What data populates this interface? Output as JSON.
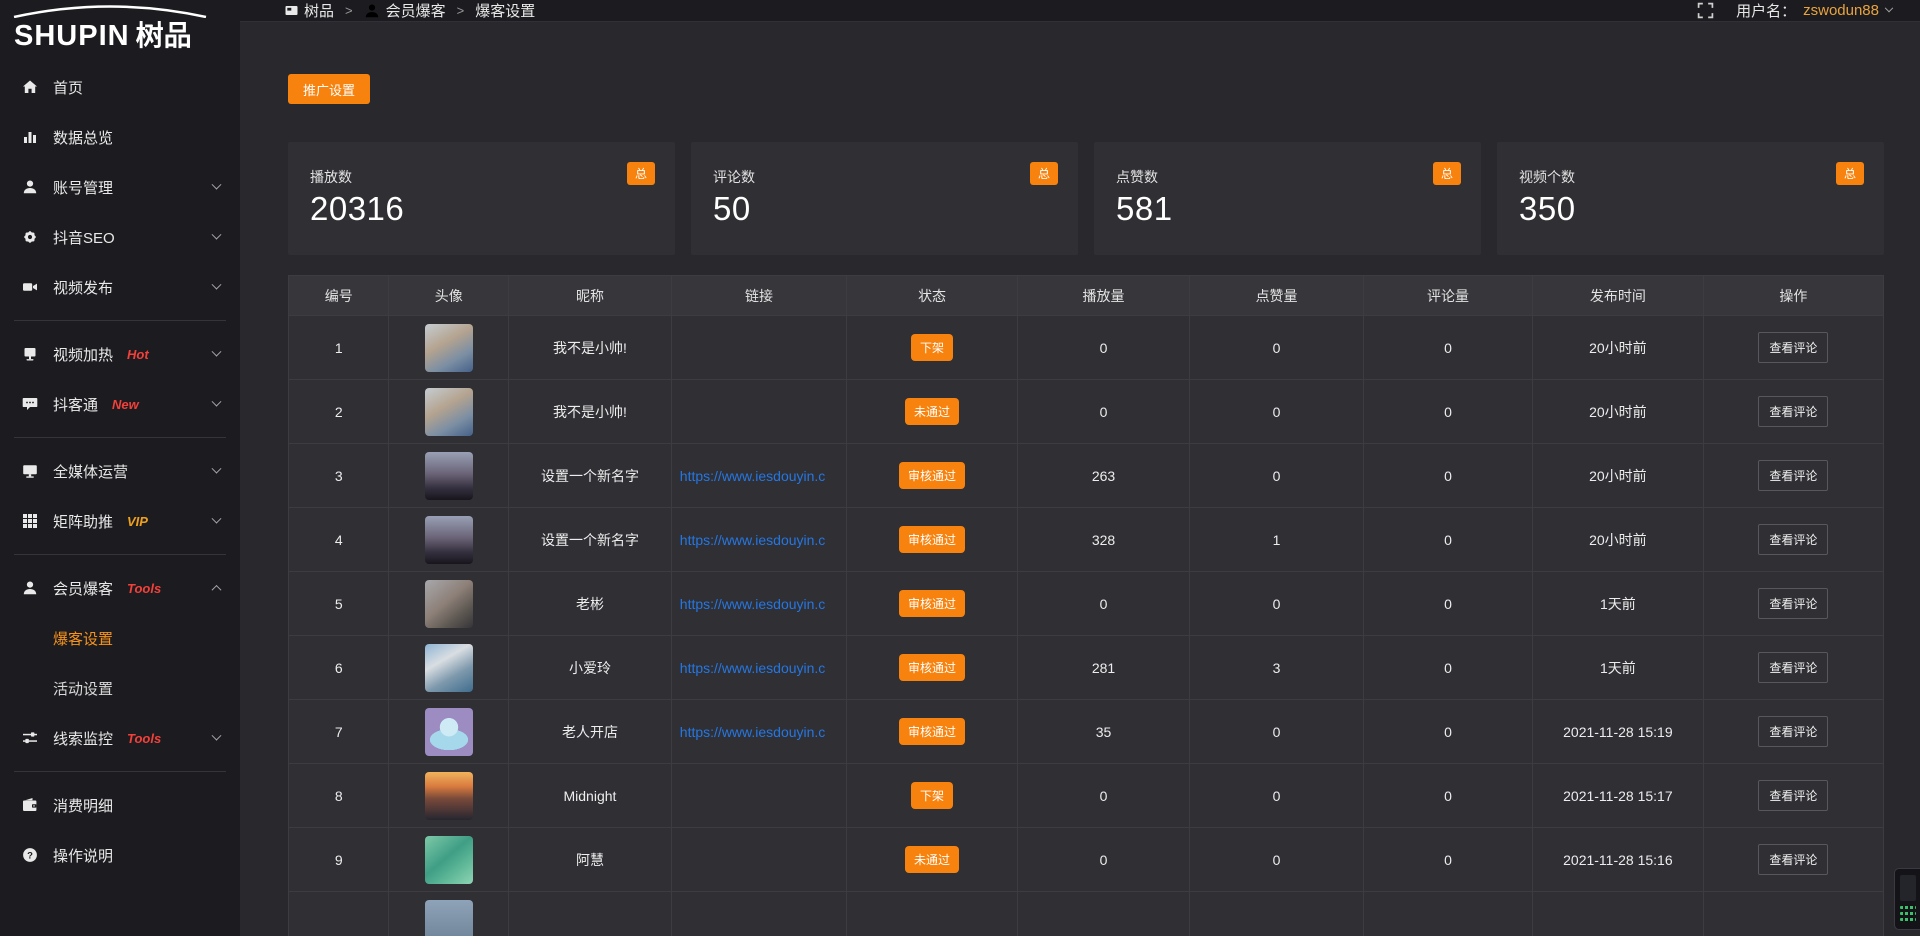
{
  "logo": {
    "brand": "SHUPIN",
    "brand_cn": "树品"
  },
  "topbar": {
    "breadcrumb": [
      {
        "label": "树品",
        "icon": "dashboard"
      },
      {
        "label": "会员爆客",
        "icon": "user"
      },
      {
        "label": "爆客设置",
        "icon": ""
      }
    ],
    "separator": ">",
    "username_label": "用户名：",
    "username": "zswodun88"
  },
  "sidebar": {
    "items": [
      {
        "label": "首页",
        "icon": "home"
      },
      {
        "label": "数据总览",
        "icon": "chart"
      },
      {
        "label": "账号管理",
        "icon": "user",
        "chevron": "down"
      },
      {
        "label": "抖音SEO",
        "icon": "gear",
        "chevron": "down"
      },
      {
        "label": "视频发布",
        "icon": "video",
        "chevron": "down",
        "divider_after": true
      },
      {
        "label": "视频加热",
        "icon": "heat",
        "badge": "Hot",
        "badge_color": "#f2403a",
        "chevron": "down"
      },
      {
        "label": "抖客通",
        "icon": "chat",
        "badge": "New",
        "badge_color": "#f2403a",
        "chevron": "down",
        "divider_after": true
      },
      {
        "label": "全媒体运营",
        "icon": "monitor",
        "chevron": "down"
      },
      {
        "label": "矩阵助推",
        "icon": "grid",
        "badge": "VIP",
        "badge_color": "#f0a11c",
        "chevron": "down",
        "divider_after": true
      },
      {
        "label": "会员爆客",
        "icon": "user",
        "badge": "Tools",
        "badge_color": "#f2403a",
        "chevron": "up",
        "children": [
          {
            "label": "爆客设置",
            "active": true
          },
          {
            "label": "活动设置",
            "active": false
          }
        ]
      },
      {
        "label": "线索监控",
        "icon": "sliders",
        "badge": "Tools",
        "badge_color": "#f2403a",
        "chevron": "down",
        "divider_after": true
      },
      {
        "label": "消费明细",
        "icon": "wallet"
      },
      {
        "label": "操作说明",
        "icon": "help"
      }
    ]
  },
  "toolbar": {
    "promo_button": "推广设置"
  },
  "stats": [
    {
      "label": "播放数",
      "value": "20316",
      "badge": "总"
    },
    {
      "label": "评论数",
      "value": "50",
      "badge": "总"
    },
    {
      "label": "点赞数",
      "value": "581",
      "badge": "总"
    },
    {
      "label": "视频个数",
      "value": "350",
      "badge": "总"
    }
  ],
  "table": {
    "headers": [
      "编号",
      "头像",
      "昵称",
      "链接",
      "状态",
      "播放量",
      "点赞量",
      "评论量",
      "发布时间",
      "操作"
    ],
    "action_label": "查看评论",
    "rows": [
      {
        "id": "1",
        "avatar": "boy",
        "nickname": "我不是小帅!",
        "link": "",
        "status": "下架",
        "plays": "0",
        "likes": "0",
        "comments": "0",
        "time": "20小时前"
      },
      {
        "id": "2",
        "avatar": "boy",
        "nickname": "我不是小帅!",
        "link": "",
        "status": "未通过",
        "plays": "0",
        "likes": "0",
        "comments": "0",
        "time": "20小时前"
      },
      {
        "id": "3",
        "avatar": "sunset",
        "nickname": "设置一个新名字",
        "link": "https://www.iesdouyin.c",
        "status": "审核通过",
        "plays": "263",
        "likes": "0",
        "comments": "0",
        "time": "20小时前"
      },
      {
        "id": "4",
        "avatar": "sunset",
        "nickname": "设置一个新名字",
        "link": "https://www.iesdouyin.c",
        "status": "审核通过",
        "plays": "328",
        "likes": "1",
        "comments": "0",
        "time": "20小时前"
      },
      {
        "id": "5",
        "avatar": "man",
        "nickname": "老彬",
        "link": "https://www.iesdouyin.c",
        "status": "审核通过",
        "plays": "0",
        "likes": "0",
        "comments": "0",
        "time": "1天前"
      },
      {
        "id": "6",
        "avatar": "woman",
        "nickname": "小爱玲",
        "link": "https://www.iesdouyin.c",
        "status": "审核通过",
        "plays": "281",
        "likes": "3",
        "comments": "0",
        "time": "1天前"
      },
      {
        "id": "7",
        "avatar": "mascot",
        "nickname": "老人开店",
        "link": "https://www.iesdouyin.c",
        "status": "审核通过",
        "plays": "35",
        "likes": "0",
        "comments": "0",
        "time": "2021-11-28 15:19"
      },
      {
        "id": "8",
        "avatar": "sea",
        "nickname": "Midnight",
        "link": "",
        "status": "下架",
        "plays": "0",
        "likes": "0",
        "comments": "0",
        "time": "2021-11-28 15:17"
      },
      {
        "id": "9",
        "avatar": "green",
        "nickname": "阿慧",
        "link": "",
        "status": "未通过",
        "plays": "0",
        "likes": "0",
        "comments": "0",
        "time": "2021-11-28 15:16"
      },
      {
        "id": "",
        "avatar": "partial",
        "nickname": "",
        "link": "",
        "status": "",
        "plays": "",
        "likes": "",
        "comments": "",
        "time": "",
        "partial": true
      }
    ]
  },
  "colors": {
    "accent_orange": "#f7820d",
    "active_menu_orange": "#f7931a",
    "link_blue": "#2577e3",
    "badge_red": "#f2403a",
    "badge_gold": "#f0a11c",
    "username_gold": "#e8a33d",
    "widget_green": "#39c16c"
  }
}
